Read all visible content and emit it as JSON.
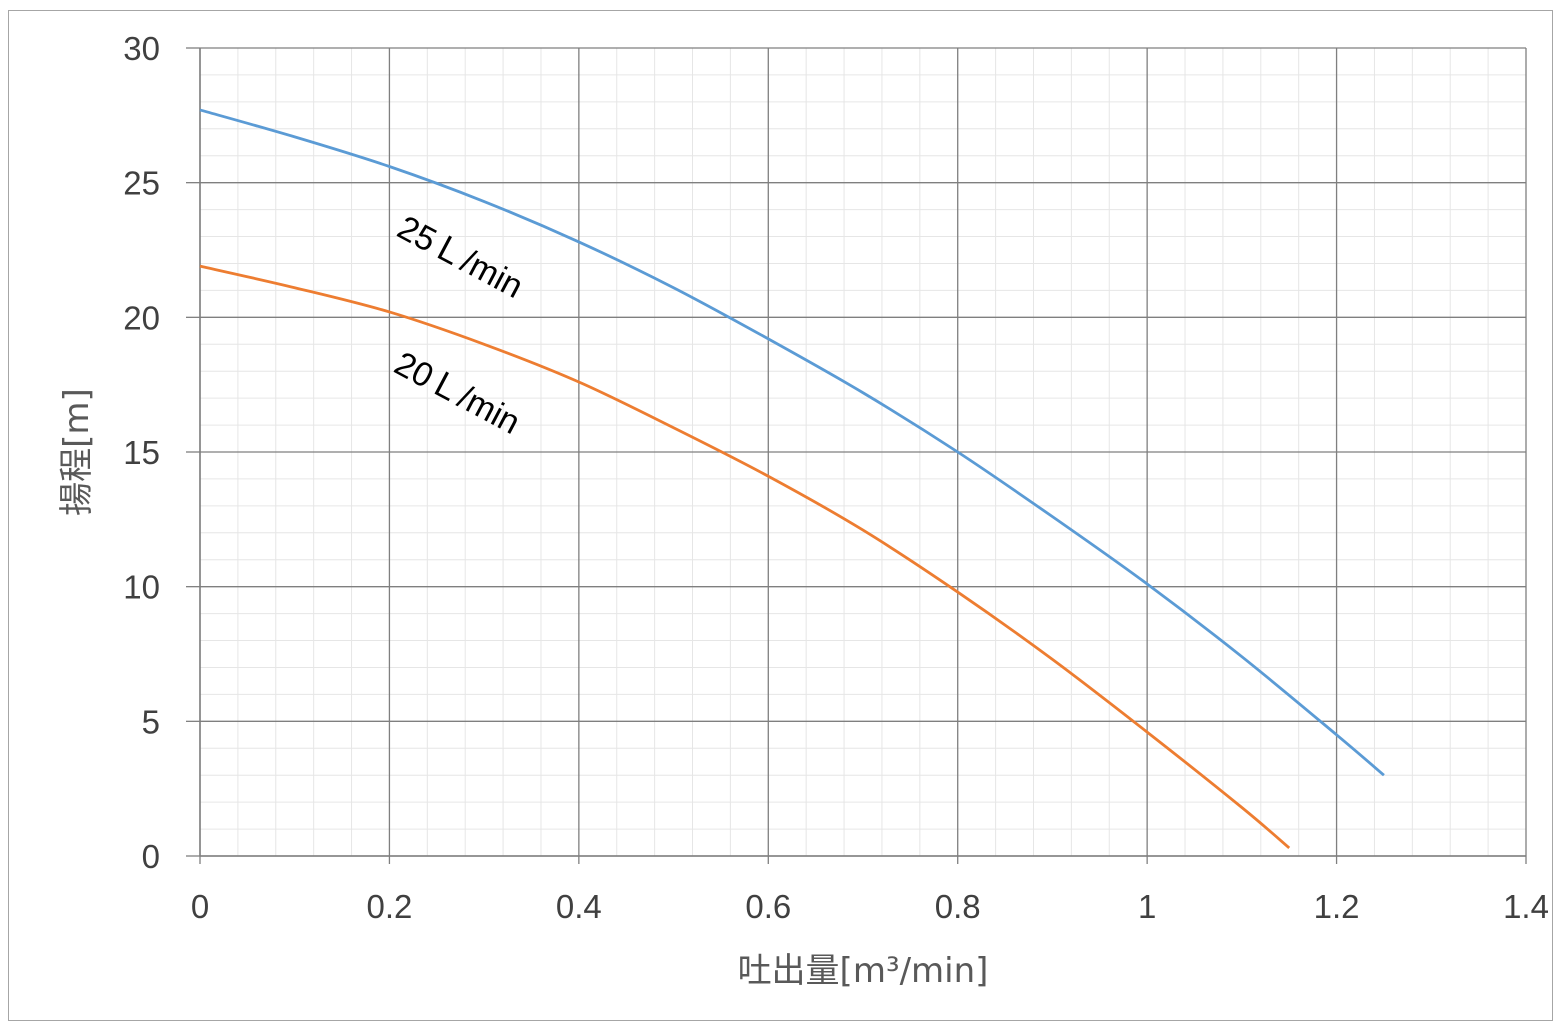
{
  "chart_data": {
    "type": "line",
    "title": "",
    "xlabel": "吐出量[m³/min]",
    "ylabel": "揚程[m]",
    "xlim": [
      0,
      1.4
    ],
    "ylim": [
      0,
      30
    ],
    "x_ticks": [
      "0",
      "0.2",
      "0.4",
      "0.6",
      "0.8",
      "1",
      "1.2",
      "1.4"
    ],
    "y_ticks": [
      "0",
      "5",
      "10",
      "15",
      "20",
      "25",
      "30"
    ],
    "grid": "major and minor",
    "legend": "none",
    "series": [
      {
        "name": "25Ｌ/min",
        "color": "#5b9bd5",
        "x": [
          0,
          0.1,
          0.2,
          0.3,
          0.4,
          0.5,
          0.6,
          0.7,
          0.8,
          0.9,
          1.0,
          1.1,
          1.2,
          1.25
        ],
        "y": [
          27.7,
          26.7,
          25.6,
          24.3,
          22.8,
          21.1,
          19.2,
          17.2,
          15.0,
          12.6,
          10.1,
          7.4,
          4.5,
          3.0
        ]
      },
      {
        "name": "20Ｌ/min",
        "color": "#ed7d31",
        "x": [
          0,
          0.1,
          0.2,
          0.3,
          0.4,
          0.5,
          0.6,
          0.7,
          0.8,
          0.9,
          1.0,
          1.1,
          1.15
        ],
        "y": [
          21.9,
          21.1,
          20.2,
          19.0,
          17.6,
          15.9,
          14.1,
          12.1,
          9.8,
          7.3,
          4.6,
          1.8,
          0.3
        ]
      }
    ],
    "annotations": [
      {
        "text": "25Ｌ/min",
        "series": 0
      },
      {
        "text": "20Ｌ/min",
        "series": 1
      }
    ]
  }
}
